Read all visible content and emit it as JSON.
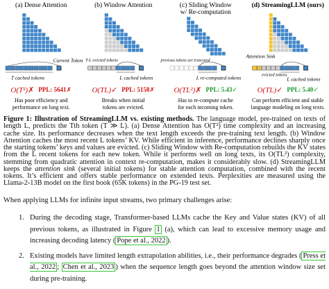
{
  "figure": {
    "panels": [
      {
        "title": [
          "(a) Dense Attention"
        ],
        "labels": [
          "Current Token",
          "T cached tokens"
        ],
        "complexity": "O(T²)",
        "complexity_mark": "✗",
        "complexity_color": "#d01010",
        "ppl": "PPL: 5641",
        "ppl_mark": "✗",
        "ppl_color": "#d01010",
        "description": [
          "Has poor efficiency and",
          "performance on long text."
        ]
      },
      {
        "title": [
          "(b) Window Attention"
        ],
        "labels": [
          "T-L evicted tokens",
          "L cached tokens"
        ],
        "complexity": "O(TL)",
        "complexity_mark": "✓",
        "complexity_color": "#d01010",
        "ppl": "PPL: 5158",
        "ppl_mark": "✗",
        "ppl_color": "#d01010",
        "description": [
          "Breaks when initial",
          "tokens are evicted."
        ]
      },
      {
        "title": [
          "(c) Sliding Window",
          "w/ Re-computation"
        ],
        "labels": [
          "previous tokens are truncated",
          "L re-computed tokens"
        ],
        "complexity": "O(TL²)",
        "complexity_mark": "✗",
        "complexity_color": "#d01010",
        "ppl": "PPL: 5.43",
        "ppl_mark": "✓",
        "ppl_color": "#1a9a2a",
        "description": [
          "Has to re-compute cache",
          "for each incoming token."
        ]
      },
      {
        "title": [
          "(d) StreamingLLM (ours)"
        ],
        "labels": [
          "Attention Sink",
          "evicted tokens",
          "L cached tokens"
        ],
        "complexity": "O(TL)",
        "complexity_mark": "✓",
        "complexity_color": "#d01010",
        "ppl": "PPL: 5.40",
        "ppl_mark": "✓",
        "ppl_color": "#1a9a2a",
        "description": [
          "Can perform efficient and stable",
          "language modeling on long texts."
        ]
      }
    ]
  },
  "caption": {
    "label": "Figure 1:",
    "title": "Illustration of StreamingLLM vs. existing methods.",
    "text_1": " The language model, pre-trained on texts of length L, predicts the Tth token (T ≫ L). (a) Dense Attention has O(T²) time complexity and an increasing cache size. Its performance decreases when the text length exceeds the pre-training text length. (b) Window Attention caches the most recent L tokens’ KV. While efficient in inference, performance declines sharply once the starting tokens’ keys and values are evicted. (c) Sliding Window with Re-computation rebuilds the KV states from the L recent tokens for each new token. While it performs well on long texts, its O(TL²) complexity, stemming from quadratic attention in context re-computation, makes it considerably slow. (d) StreamingLLM keeps the ",
    "emphasis": "attention sink",
    "text_2": " (several initial tokens) for stable attention computation, combined with the recent tokens. It’s efficient and offers stable performance on extended texts. Perplexities are measured using the Llama-2-13B model on the first book (65K tokens) in the PG-19 test set."
  },
  "body": {
    "intro": "When applying LLMs for infinite input streams, two primary challenges arise:",
    "items": [
      {
        "number": "1.",
        "parts": [
          {
            "text": "During the decoding stage, Transformer-based LLMs cache the Key and Value states (KV) of all previous tokens, as illustrated in Figure "
          },
          {
            "cite": "1"
          },
          {
            "text": " (a), which can lead to excessive memory usage and increasing decoding latency ("
          },
          {
            "cite": "Pope et al., 2022"
          },
          {
            "text": ")."
          }
        ]
      },
      {
        "number": "2.",
        "parts": [
          {
            "text": "Existing models have limited length extrapolation abilities, i.e., their performance degrades ("
          },
          {
            "cite": "Press et al., 2022"
          },
          {
            "text": "; "
          },
          {
            "cite": "Chen et al., 2023"
          },
          {
            "text": ") when the sequence length goes beyond the attention window size set during pre-training."
          }
        ]
      }
    ]
  }
}
